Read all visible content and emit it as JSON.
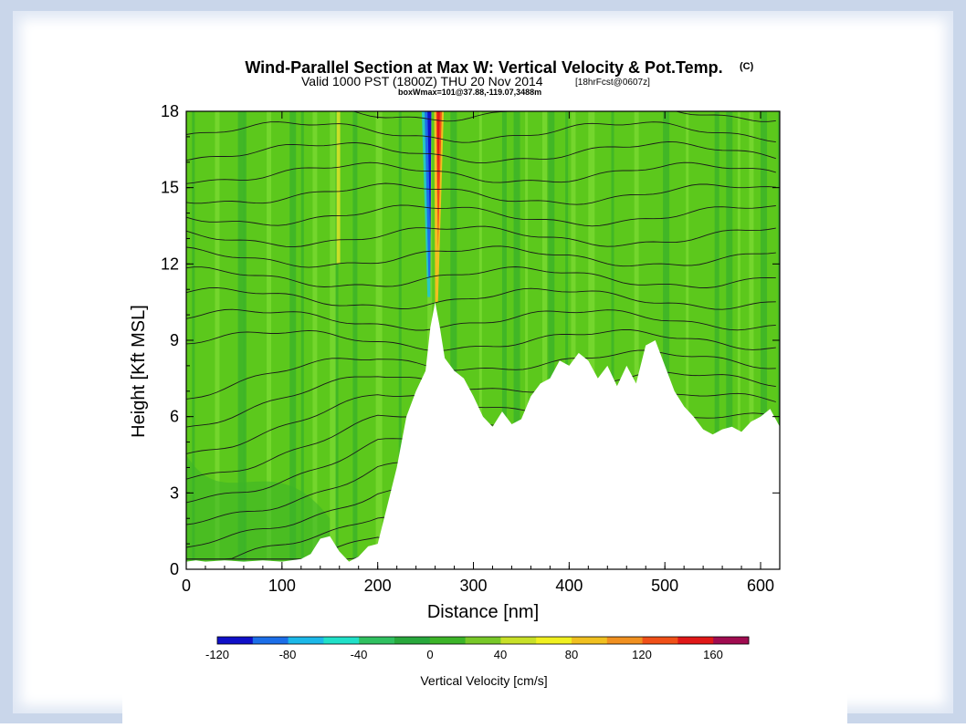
{
  "chart_data": {
    "type": "heatmap",
    "title": "Wind-Parallel Section at Max W: Vertical Velocity & Pot.Temp.",
    "title_mark": "(C)",
    "subtitle_main": "Valid 1000 PST (1800Z) THU 20 Nov 2014",
    "subtitle_tag": "[18hrFcst@0607z]",
    "subtitle2": "boxWmax=101@37.88,-119.07,3488m",
    "xlabel": "Distance [nm]",
    "ylabel": "Height [Kft MSL]",
    "xlim": [
      0,
      620
    ],
    "ylim": [
      0,
      18
    ],
    "x_ticks": [
      "0",
      "100",
      "200",
      "300",
      "400",
      "500",
      "600"
    ],
    "y_ticks": [
      "0",
      "3",
      "6",
      "9",
      "12",
      "15",
      "18"
    ],
    "colorbar": {
      "title": "Vertical Velocity [cm/s]",
      "labels": [
        "-120",
        "-80",
        "-40",
        "0",
        "40",
        "80",
        "120",
        "160"
      ],
      "colors": [
        "#1010c8",
        "#1c6ee8",
        "#1cb8e8",
        "#20e0c8",
        "#30c060",
        "#28a83c",
        "#3cb428",
        "#78c828",
        "#c8e028",
        "#f0f020",
        "#f0c020",
        "#f09020",
        "#f05018",
        "#e01818",
        "#a00c50"
      ]
    },
    "terrain_profile": [
      [
        0,
        0.3
      ],
      [
        10,
        0.35
      ],
      [
        20,
        0.3
      ],
      [
        40,
        0.35
      ],
      [
        60,
        0.3
      ],
      [
        80,
        0.35
      ],
      [
        100,
        0.3
      ],
      [
        120,
        0.4
      ],
      [
        130,
        0.6
      ],
      [
        140,
        1.2
      ],
      [
        150,
        1.3
      ],
      [
        160,
        0.7
      ],
      [
        170,
        0.3
      ],
      [
        180,
        0.5
      ],
      [
        190,
        0.9
      ],
      [
        200,
        1.0
      ],
      [
        210,
        2.5
      ],
      [
        220,
        4.0
      ],
      [
        230,
        6.0
      ],
      [
        240,
        7.0
      ],
      [
        250,
        7.8
      ],
      [
        255,
        9.5
      ],
      [
        260,
        10.5
      ],
      [
        265,
        9.5
      ],
      [
        270,
        8.3
      ],
      [
        280,
        7.8
      ],
      [
        290,
        7.5
      ],
      [
        300,
        6.8
      ],
      [
        310,
        6.0
      ],
      [
        320,
        5.6
      ],
      [
        330,
        6.2
      ],
      [
        340,
        5.7
      ],
      [
        350,
        5.9
      ],
      [
        360,
        6.8
      ],
      [
        370,
        7.3
      ],
      [
        380,
        7.5
      ],
      [
        390,
        8.2
      ],
      [
        400,
        8.0
      ],
      [
        410,
        8.5
      ],
      [
        420,
        8.2
      ],
      [
        430,
        7.5
      ],
      [
        440,
        8.0
      ],
      [
        450,
        7.2
      ],
      [
        460,
        8.0
      ],
      [
        470,
        7.3
      ],
      [
        480,
        8.8
      ],
      [
        490,
        9.0
      ],
      [
        500,
        8.0
      ],
      [
        510,
        7.0
      ],
      [
        520,
        6.4
      ],
      [
        530,
        6.0
      ],
      [
        540,
        5.5
      ],
      [
        550,
        5.3
      ],
      [
        560,
        5.5
      ],
      [
        570,
        5.6
      ],
      [
        580,
        5.4
      ],
      [
        590,
        5.8
      ],
      [
        600,
        6.0
      ],
      [
        610,
        6.3
      ],
      [
        620,
        5.6
      ]
    ],
    "velocity_updraft_core_x": 265,
    "velocity_downdraft_core_x": 255
  }
}
